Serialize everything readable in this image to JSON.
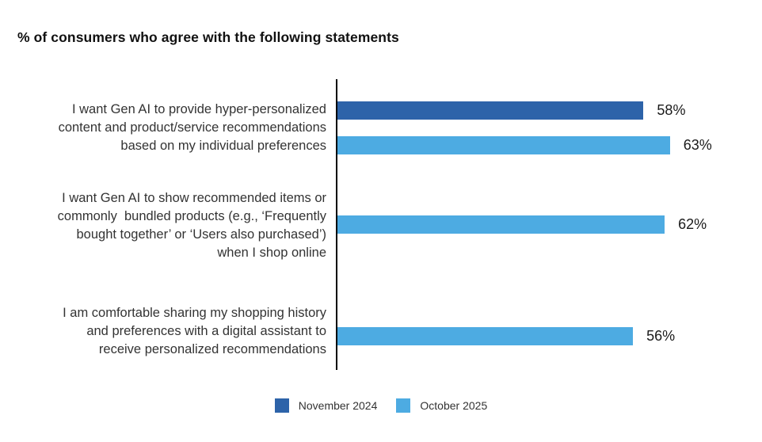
{
  "title": "% of consumers who agree with the following statements",
  "chart_data": {
    "type": "bar",
    "orientation": "horizontal",
    "title": "% of consumers who agree with the following statements",
    "xlim": [
      0,
      80
    ],
    "value_unit": "%",
    "grid": false,
    "legend_position": "bottom",
    "categories": [
      "I want Gen AI to provide hyper-personalized content and product/service recommendations based on my individual preferences",
      "I want Gen AI to show recommended items or commonly bundled products (e.g., ‘Frequently bought together’ or ‘Users also purchased’) when I shop online",
      "I am comfortable sharing my shopping history and preferences with a digital assistant to receive personalized recommendations"
    ],
    "category_lines": [
      [
        "I want Gen AI to provide hyper-personalized",
        "content and product/service recommendations",
        "based on my individual preferences"
      ],
      [
        "I want Gen AI to show recommended items or",
        "commonly  bundled products (e.g., ‘Frequently",
        "bought together’ or ‘Users also purchased’)",
        "when I shop online"
      ],
      [
        "I am comfortable sharing my shopping history",
        "and preferences with a digital assistant to",
        "receive personalized recommendations"
      ]
    ],
    "series": [
      {
        "name": "November 2024",
        "color": "#2d63a9",
        "values": [
          58,
          null,
          null
        ],
        "labels": [
          "58%",
          null,
          null
        ]
      },
      {
        "name": "October 2025",
        "color": "#4dabe2",
        "values": [
          63,
          62,
          56
        ],
        "labels": [
          "63%",
          "62%",
          "56%"
        ]
      }
    ]
  },
  "legend": {
    "items": [
      {
        "label": "November 2024",
        "color": "#2d63a9"
      },
      {
        "label": "October 2025",
        "color": "#4dabe2"
      }
    ]
  },
  "colors": {
    "nov_2024": "#2d63a9",
    "oct_2025": "#4dabe2",
    "axis": "#000000",
    "title_text": "#111111",
    "label_text": "#333333"
  }
}
